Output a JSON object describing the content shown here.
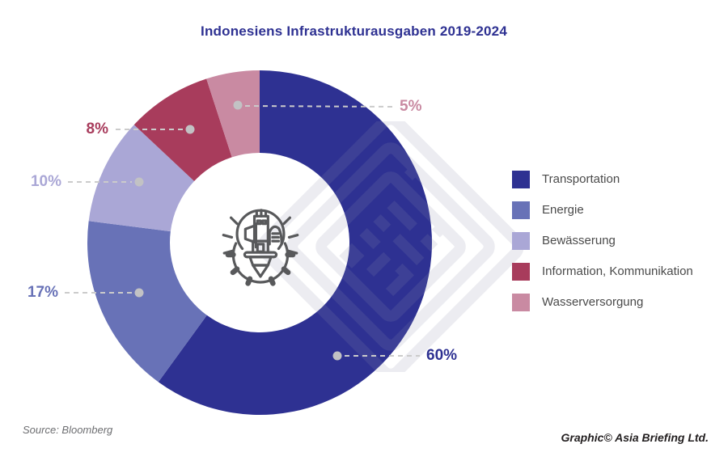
{
  "title": "Indonesiens Infrastrukturausgaben 2019-2024",
  "footer": {
    "source": "Source: Bloomberg",
    "credit": "Graphic© Asia Briefing Ltd."
  },
  "chart_data": {
    "type": "pie",
    "subtype": "donut",
    "title": "Indonesiens Infrastrukturausgaben 2019-2024",
    "categories": [
      "Transportation",
      "Energie",
      "Bewässerung",
      "Information, Kommunikation",
      "Wasserversorgung"
    ],
    "values": [
      60,
      17,
      10,
      8,
      5
    ],
    "unit": "%",
    "labels": [
      "60%",
      "17%",
      "10%",
      "8%",
      "5%"
    ],
    "colors": [
      "#2e3192",
      "#6872b7",
      "#aaa7d6",
      "#a83c5c",
      "#c98aa2"
    ],
    "start_angle_deg": 0,
    "direction": "clockwise",
    "donut_hole_ratio": 0.52,
    "legend_position": "right",
    "label_style": "dashed leader lines with gray dots, label text colored like its slice",
    "center_icon": "city-lightbulb-gear",
    "leader_dot_color": "#c2c2c4",
    "leader_line_color": "#cbcbcb"
  }
}
